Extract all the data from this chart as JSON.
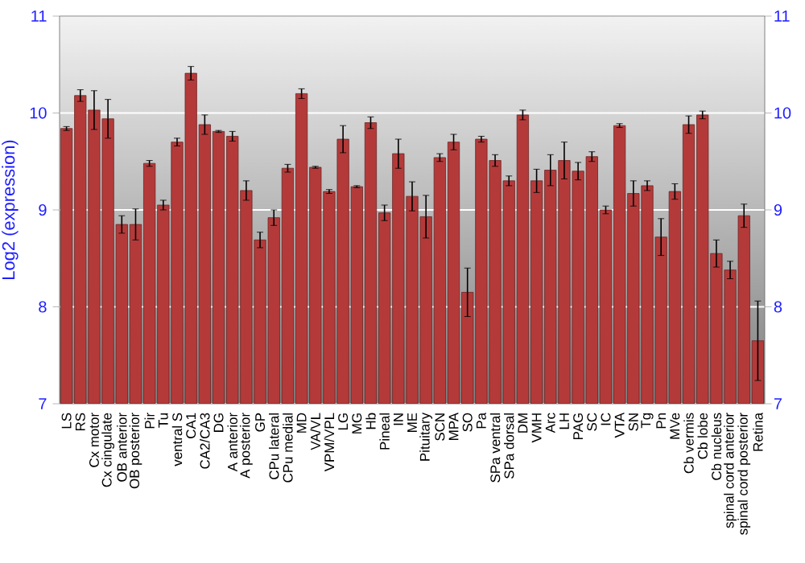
{
  "chart_data": {
    "type": "bar",
    "ylabel": "Log2 (expression)",
    "categories": [
      "LS",
      "RS",
      "Cx motor",
      "Cx cingulate",
      "OB anterior",
      "OB posterior",
      "Pir",
      "Tu",
      "ventral S",
      "CA1",
      "CA2/CA3",
      "DG",
      "A anterior",
      "A posterior",
      "GP",
      "CPu lateral",
      "CPu medial",
      "MD",
      "VA/VL",
      "VPM/VPL",
      "LG",
      "MG",
      "Hb",
      "Pineal",
      "IN",
      "ME",
      "Pituitary",
      "SCN",
      "MPA",
      "SO",
      "Pa",
      "SPa ventral",
      "SPa dorsal",
      "DM",
      "VMH",
      "Arc",
      "LH",
      "PAG",
      "SC",
      "IC",
      "VTA",
      "SN",
      "Tg",
      "Pn",
      "MVe",
      "Cb vermis",
      "Cb lobe",
      "Cb nucleus",
      "spinal cord anterior",
      "spinal cord posterior",
      "Retina"
    ],
    "values": [
      9.84,
      10.18,
      10.03,
      9.94,
      8.85,
      8.85,
      9.48,
      9.05,
      9.7,
      10.41,
      9.88,
      9.81,
      9.76,
      9.2,
      8.69,
      8.92,
      9.43,
      10.2,
      9.44,
      9.19,
      9.73,
      9.24,
      9.9,
      8.97,
      9.58,
      9.14,
      8.93,
      9.54,
      9.7,
      8.15,
      9.73,
      9.51,
      9.3,
      9.98,
      9.3,
      9.41,
      9.51,
      9.4,
      9.55,
      9.0,
      9.87,
      9.17,
      9.25,
      8.72,
      9.19,
      9.88,
      9.98,
      8.55,
      8.38,
      8.94,
      7.65
    ],
    "errors": [
      0.02,
      0.06,
      0.2,
      0.2,
      0.09,
      0.16,
      0.03,
      0.05,
      0.04,
      0.07,
      0.1,
      0.01,
      0.05,
      0.1,
      0.08,
      0.08,
      0.04,
      0.05,
      0.01,
      0.02,
      0.14,
      0.01,
      0.06,
      0.08,
      0.15,
      0.15,
      0.22,
      0.04,
      0.08,
      0.25,
      0.03,
      0.06,
      0.05,
      0.05,
      0.12,
      0.16,
      0.19,
      0.09,
      0.05,
      0.04,
      0.02,
      0.13,
      0.05,
      0.19,
      0.08,
      0.09,
      0.04,
      0.14,
      0.09,
      0.12,
      0.41
    ],
    "color": "#b43a3a",
    "ylim": [
      7,
      11
    ],
    "yticks": [
      7,
      8,
      9,
      10,
      11
    ],
    "y2lim": [
      7,
      11
    ],
    "y2ticks": [
      7,
      8,
      9,
      10,
      11
    ],
    "grid": "y"
  }
}
